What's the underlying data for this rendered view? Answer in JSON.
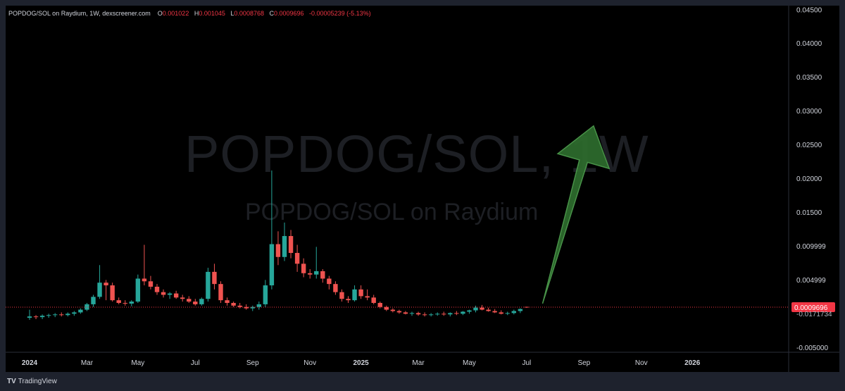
{
  "header": {
    "title": "POPDOG/SOL on Raydium, 1W, dexscreener.com",
    "o_label": "O",
    "o_value": "0.001022",
    "h_label": "H",
    "h_value": "0.001045",
    "l_label": "L",
    "l_value": "0.0008768",
    "c_label": "C",
    "c_value": "0.0009696",
    "change": "-0.00005239 (-5.13%)"
  },
  "watermark": {
    "main": "POPDOG/SOL, 1W",
    "sub": "POPDOG/SOL on Raydium"
  },
  "branding": {
    "tradingview": "TradingView"
  },
  "colors": {
    "up": "#26a69a",
    "down": "#ef5350",
    "arrow": "#2d6a2d",
    "price_tag": "#f23645"
  },
  "chart_data": {
    "type": "candlestick",
    "title": "POPDOG/SOL on Raydium, 1W, dexscreener.com",
    "ylim": [
      -0.0057,
      0.0456
    ],
    "y_ticks": [
      0.045,
      0.04,
      0.035,
      0.03,
      0.025,
      0.02,
      0.015,
      0.009999,
      0.004999,
      -0.005
    ],
    "y_tick_labels": [
      "0.04500",
      "0.04000",
      "0.03500",
      "0.03000",
      "0.02500",
      "0.02000",
      "0.01500",
      "0.009999",
      "0.004999",
      "-0.005000"
    ],
    "last_price": 0.0009696,
    "last_price_label": "0.0009696",
    "partial_label": "-0.0171734",
    "x_labels": [
      "2024",
      "Mar",
      "May",
      "Jul",
      "Sep",
      "Nov",
      "2025",
      "Mar",
      "May",
      "Jul",
      "Sep",
      "Nov",
      "2026"
    ],
    "x_label_weeks": [
      0,
      9,
      17,
      26,
      35,
      44,
      52,
      61,
      69,
      78,
      87,
      96,
      104
    ],
    "arrow": {
      "from": {
        "week": 80.5,
        "price": 0.0015
      },
      "to": {
        "week": 88.5,
        "price": 0.0278
      }
    },
    "candles": [
      {
        "o": -0.0006,
        "h": 0.0006,
        "l": -0.0009,
        "c": -0.0004
      },
      {
        "o": -0.0004,
        "h": -0.0002,
        "l": -0.0008,
        "c": -0.0005
      },
      {
        "o": -0.0005,
        "h": -0.0001,
        "l": -0.0008,
        "c": -0.0003
      },
      {
        "o": -0.0003,
        "h": 0.0,
        "l": -0.0006,
        "c": -0.0002
      },
      {
        "o": -0.0002,
        "h": 0.0001,
        "l": -0.0005,
        "c": -0.0001
      },
      {
        "o": -0.0001,
        "h": 0.0002,
        "l": -0.0004,
        "c": -0.0002
      },
      {
        "o": -0.0002,
        "h": 0.0002,
        "l": -0.0004,
        "c": 0.0
      },
      {
        "o": 0.0,
        "h": 0.0004,
        "l": -0.0003,
        "c": 0.0002
      },
      {
        "o": 0.0002,
        "h": 0.0008,
        "l": 0.0,
        "c": 0.0006
      },
      {
        "o": 0.0006,
        "h": 0.0016,
        "l": 0.0004,
        "c": 0.0014
      },
      {
        "o": 0.0014,
        "h": 0.0028,
        "l": 0.001,
        "c": 0.0025
      },
      {
        "o": 0.0025,
        "h": 0.0072,
        "l": 0.0022,
        "c": 0.0046
      },
      {
        "o": 0.0046,
        "h": 0.005,
        "l": 0.002,
        "c": 0.0042
      },
      {
        "o": 0.0042,
        "h": 0.0046,
        "l": 0.0018,
        "c": 0.002
      },
      {
        "o": 0.002,
        "h": 0.0024,
        "l": 0.0014,
        "c": 0.0016
      },
      {
        "o": 0.0016,
        "h": 0.002,
        "l": 0.0012,
        "c": 0.0015
      },
      {
        "o": 0.0015,
        "h": 0.002,
        "l": 0.0011,
        "c": 0.0018
      },
      {
        "o": 0.0018,
        "h": 0.0058,
        "l": 0.0016,
        "c": 0.0052
      },
      {
        "o": 0.0052,
        "h": 0.0102,
        "l": 0.0042,
        "c": 0.0048
      },
      {
        "o": 0.0048,
        "h": 0.0056,
        "l": 0.0036,
        "c": 0.004
      },
      {
        "o": 0.004,
        "h": 0.0044,
        "l": 0.0028,
        "c": 0.0032
      },
      {
        "o": 0.0032,
        "h": 0.0036,
        "l": 0.0024,
        "c": 0.0028
      },
      {
        "o": 0.0028,
        "h": 0.0032,
        "l": 0.0022,
        "c": 0.003
      },
      {
        "o": 0.003,
        "h": 0.0034,
        "l": 0.0022,
        "c": 0.0024
      },
      {
        "o": 0.0024,
        "h": 0.0028,
        "l": 0.0018,
        "c": 0.0022
      },
      {
        "o": 0.0022,
        "h": 0.0026,
        "l": 0.0016,
        "c": 0.0018
      },
      {
        "o": 0.0018,
        "h": 0.0022,
        "l": 0.0012,
        "c": 0.0014
      },
      {
        "o": 0.0014,
        "h": 0.0024,
        "l": 0.0012,
        "c": 0.0022
      },
      {
        "o": 0.0022,
        "h": 0.0068,
        "l": 0.0018,
        "c": 0.0062
      },
      {
        "o": 0.0062,
        "h": 0.0074,
        "l": 0.0036,
        "c": 0.0044
      },
      {
        "o": 0.0044,
        "h": 0.0048,
        "l": 0.0016,
        "c": 0.002
      },
      {
        "o": 0.002,
        "h": 0.0024,
        "l": 0.0012,
        "c": 0.0016
      },
      {
        "o": 0.0016,
        "h": 0.0018,
        "l": 0.001,
        "c": 0.0012
      },
      {
        "o": 0.0012,
        "h": 0.0016,
        "l": 0.0008,
        "c": 0.001
      },
      {
        "o": 0.001,
        "h": 0.0014,
        "l": 0.0006,
        "c": 0.0008
      },
      {
        "o": 0.0008,
        "h": 0.0012,
        "l": 0.0004,
        "c": 0.001
      },
      {
        "o": 0.001,
        "h": 0.0018,
        "l": 0.0006,
        "c": 0.0014
      },
      {
        "o": 0.0014,
        "h": 0.005,
        "l": 0.001,
        "c": 0.0042
      },
      {
        "o": 0.0042,
        "h": 0.0212,
        "l": 0.0036,
        "c": 0.0103
      },
      {
        "o": 0.0103,
        "h": 0.0122,
        "l": 0.0072,
        "c": 0.0084
      },
      {
        "o": 0.0084,
        "h": 0.0135,
        "l": 0.0078,
        "c": 0.0115
      },
      {
        "o": 0.0115,
        "h": 0.0124,
        "l": 0.0082,
        "c": 0.009
      },
      {
        "o": 0.009,
        "h": 0.0102,
        "l": 0.0062,
        "c": 0.0074
      },
      {
        "o": 0.0074,
        "h": 0.0082,
        "l": 0.0054,
        "c": 0.006
      },
      {
        "o": 0.006,
        "h": 0.0066,
        "l": 0.0052,
        "c": 0.0058
      },
      {
        "o": 0.0058,
        "h": 0.0099,
        "l": 0.0052,
        "c": 0.0063
      },
      {
        "o": 0.0063,
        "h": 0.0066,
        "l": 0.0046,
        "c": 0.0052
      },
      {
        "o": 0.0052,
        "h": 0.0056,
        "l": 0.0036,
        "c": 0.0044
      },
      {
        "o": 0.0044,
        "h": 0.0048,
        "l": 0.0028,
        "c": 0.0032
      },
      {
        "o": 0.0032,
        "h": 0.0036,
        "l": 0.0018,
        "c": 0.0022
      },
      {
        "o": 0.0022,
        "h": 0.0026,
        "l": 0.0016,
        "c": 0.002
      },
      {
        "o": 0.002,
        "h": 0.0042,
        "l": 0.0018,
        "c": 0.0036
      },
      {
        "o": 0.0036,
        "h": 0.0042,
        "l": 0.0022,
        "c": 0.0026
      },
      {
        "o": 0.0026,
        "h": 0.0036,
        "l": 0.002,
        "c": 0.0024
      },
      {
        "o": 0.0024,
        "h": 0.0028,
        "l": 0.0014,
        "c": 0.0016
      },
      {
        "o": 0.0016,
        "h": 0.0018,
        "l": 0.0008,
        "c": 0.001
      },
      {
        "o": 0.001,
        "h": 0.0012,
        "l": 0.0004,
        "c": 0.0006
      },
      {
        "o": 0.0006,
        "h": 0.0008,
        "l": 0.0002,
        "c": 0.0004
      },
      {
        "o": 0.0004,
        "h": 0.0006,
        "l": 0.0,
        "c": 0.0002
      },
      {
        "o": 0.0002,
        "h": 0.0004,
        "l": -0.0001,
        "c": 0.0
      },
      {
        "o": 0.0,
        "h": 0.0003,
        "l": -0.0003,
        "c": 0.0001
      },
      {
        "o": 0.0001,
        "h": 0.0003,
        "l": -0.0003,
        "c": -0.0001
      },
      {
        "o": -0.0001,
        "h": 0.0002,
        "l": -0.0004,
        "c": -0.0002
      },
      {
        "o": -0.0002,
        "h": 0.0001,
        "l": -0.0004,
        "c": -0.0001
      },
      {
        "o": -0.0001,
        "h": 0.0002,
        "l": -0.0003,
        "c": 0.0
      },
      {
        "o": 0.0,
        "h": 0.0003,
        "l": -0.0003,
        "c": -0.0001
      },
      {
        "o": -0.0001,
        "h": 0.0002,
        "l": -0.0004,
        "c": 0.0001
      },
      {
        "o": 0.0001,
        "h": 0.0004,
        "l": -0.0002,
        "c": 0.0
      },
      {
        "o": 0.0,
        "h": 0.0004,
        "l": -0.0002,
        "c": 0.0003
      },
      {
        "o": 0.0003,
        "h": 0.0006,
        "l": 0.0,
        "c": 0.0005
      },
      {
        "o": 0.0005,
        "h": 0.0012,
        "l": 0.0002,
        "c": 0.0009
      },
      {
        "o": 0.0009,
        "h": 0.0013,
        "l": 0.0005,
        "c": 0.0006
      },
      {
        "o": 0.0006,
        "h": 0.0009,
        "l": 0.0003,
        "c": 0.0004
      },
      {
        "o": 0.0004,
        "h": 0.0007,
        "l": 0.0001,
        "c": 0.0002
      },
      {
        "o": 0.0002,
        "h": 0.0005,
        "l": -0.0001,
        "c": 0.0
      },
      {
        "o": 0.0,
        "h": 0.0003,
        "l": -0.0002,
        "c": 0.0001
      },
      {
        "o": 0.0001,
        "h": 0.0006,
        "l": -0.0001,
        "c": 0.0004
      },
      {
        "o": 0.0004,
        "h": 0.0008,
        "l": 0.0001,
        "c": 0.0007
      },
      {
        "o": 0.001022,
        "h": 0.001045,
        "l": 0.0008768,
        "c": 0.0009696
      }
    ]
  }
}
